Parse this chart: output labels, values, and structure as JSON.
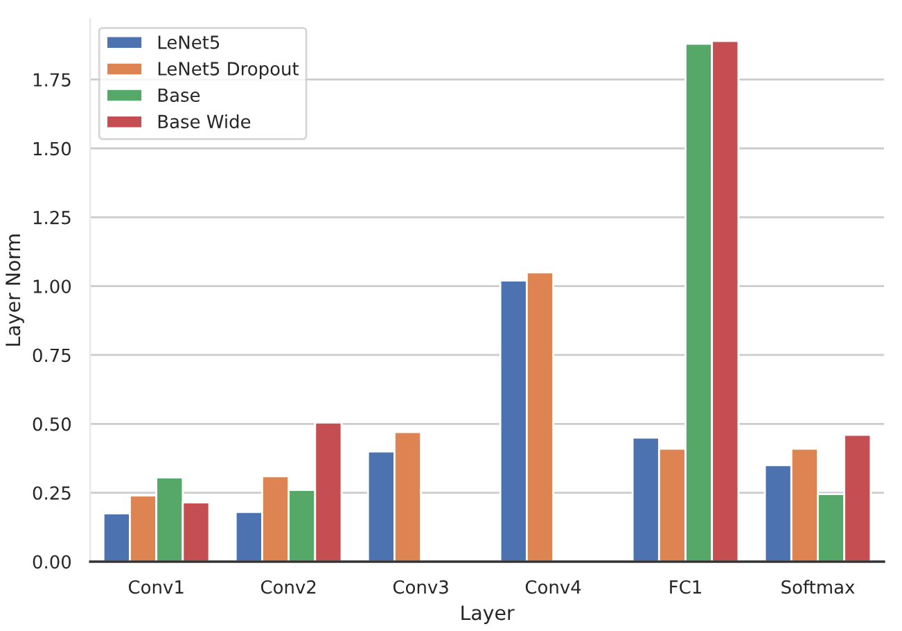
{
  "chart_data": {
    "type": "bar",
    "xlabel": "Layer",
    "ylabel": "Layer Norm",
    "categories": [
      "Conv1",
      "Conv2",
      "Conv3",
      "Conv4",
      "FC1",
      "Softmax"
    ],
    "series": [
      {
        "name": "LeNet5",
        "color": "#4c72b0",
        "values": [
          0.175,
          0.18,
          0.4,
          1.02,
          0.45,
          0.35
        ]
      },
      {
        "name": "LeNet5 Dropout",
        "color": "#dd8452",
        "values": [
          0.24,
          0.31,
          0.47,
          1.05,
          0.41,
          0.41
        ]
      },
      {
        "name": "Base",
        "color": "#55a868",
        "values": [
          0.305,
          0.26,
          null,
          null,
          1.88,
          0.245
        ]
      },
      {
        "name": "Base Wide",
        "color": "#c44e52",
        "values": [
          0.215,
          0.505,
          null,
          null,
          1.89,
          0.46
        ]
      }
    ],
    "ylim": [
      0,
      1.97
    ],
    "yticks": [
      {
        "value": 0,
        "label": "0.00"
      },
      {
        "value": 0.25,
        "label": "0.25"
      },
      {
        "value": 0.5,
        "label": "0.50"
      },
      {
        "value": 0.75,
        "label": "0.75"
      },
      {
        "value": 1,
        "label": "1.00"
      },
      {
        "value": 1.25,
        "label": "1.25"
      },
      {
        "value": 1.5,
        "label": "1.50"
      },
      {
        "value": 1.75,
        "label": "1.75"
      }
    ],
    "grid": "y",
    "legend": "top left"
  }
}
